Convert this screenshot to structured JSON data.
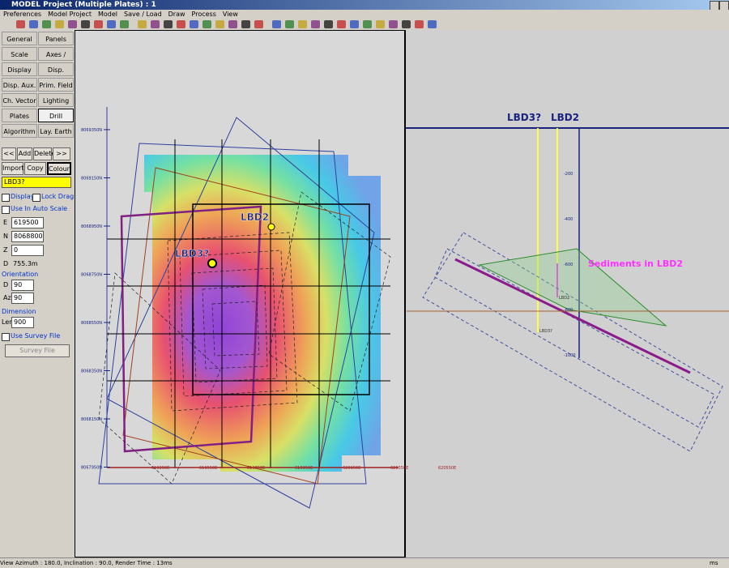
{
  "window": {
    "title": "MODEL Project (Multiple Plates) : 1"
  },
  "menu": [
    "Preferences",
    "Model Project",
    "Model",
    "Save / Load",
    "Draw",
    "Process",
    "View"
  ],
  "side_panel": {
    "tabs": [
      [
        "General",
        "Panels"
      ],
      [
        "Scale",
        "Axes / Grids"
      ],
      [
        "Display",
        "Disp. Chans."
      ],
      [
        "Disp. Aux.",
        "Prim. Field"
      ],
      [
        "Ch. Vector",
        "Lighting"
      ],
      [
        "Plates",
        "Drill Planner"
      ],
      [
        "Algorithm",
        "Lay. Earth"
      ]
    ],
    "nav_buttons": [
      "<<",
      "Add",
      "Delete",
      ">>"
    ],
    "edit_buttons": [
      "Import",
      "Copy",
      "Colour"
    ],
    "plate_name": "LBD3?",
    "checkboxes": [
      "Display",
      "Lock Drag",
      "Use In Auto Scale"
    ],
    "fields": [
      {
        "label": "E",
        "value": "619500"
      },
      {
        "label": "N",
        "value": "8068800"
      },
      {
        "label": "Z",
        "value": "0"
      }
    ],
    "depth": {
      "label": "D",
      "value": "755.3m"
    },
    "orientation": {
      "heading": "Orientation",
      "fields": [
        {
          "label": "D",
          "value": "90"
        },
        {
          "label": "Az",
          "value": "90"
        }
      ]
    },
    "dimension": {
      "heading": "Dimension",
      "fields": [
        {
          "label": "Len",
          "value": "900"
        }
      ]
    },
    "survey": {
      "checkbox": "Use Survey File",
      "button": "Survey File"
    }
  },
  "plan_view": {
    "northings": [
      "8069350N",
      "8069150N",
      "8068950N",
      "8068750N",
      "8068550N",
      "8068350N",
      "8068150N",
      "8067950N"
    ],
    "eastings": [
      "619350E",
      "619550E",
      "619750E",
      "619950E",
      "620150E",
      "620350E",
      "620550E"
    ],
    "labels": [
      "LBD2",
      "LBD3?"
    ]
  },
  "section_view": {
    "holes": [
      "LBD3?",
      "LBD2"
    ],
    "depths": [
      "-200",
      "-400",
      "-600",
      "-800",
      "-1000"
    ],
    "annotation": "Sediments in LBD2",
    "hole_tags": [
      "LBD3?",
      "LBD2"
    ]
  },
  "status_bar": {
    "text": "View Azimuth : 180.0, Inclination : 90.0, Render Time : 13ms",
    "right": "ms"
  }
}
